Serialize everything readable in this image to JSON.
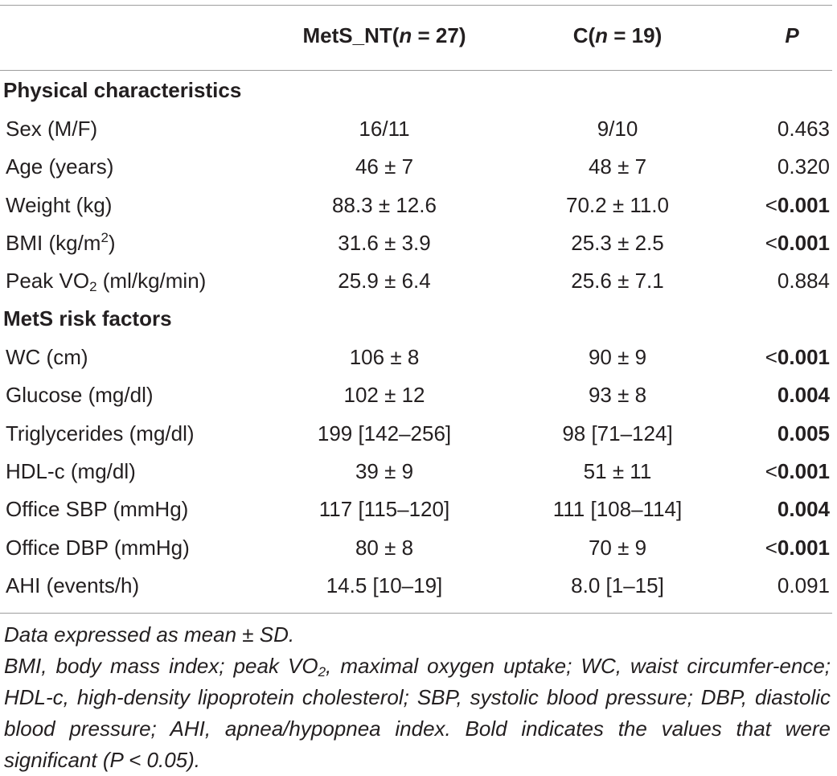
{
  "header": {
    "col1": "MetS_NT(",
    "col1_n": "n",
    "col1_tail": " = 27)",
    "col2": "C(",
    "col2_n": "n",
    "col2_tail": " = 19)",
    "col3": "P"
  },
  "sections": {
    "physical": "Physical characteristics",
    "risk": "MetS risk factors"
  },
  "rows": [
    {
      "label": "Sex (M/F)",
      "a": "16/11",
      "b": "9/10",
      "p": "0.463"
    },
    {
      "label": "Age (years)",
      "a": "46 ± 7",
      "b": "48 ± 7",
      "p": "0.320"
    },
    {
      "label": "Weight (kg)",
      "a": "88.3 ± 12.6",
      "b": "70.2 ± 11.0",
      "p_lt": "<",
      "p": "0.001"
    },
    {
      "label": "BMI (kg/m",
      "label_sup": "2",
      "label_tail": ")",
      "a": "31.6 ± 3.9",
      "b": "25.3 ± 2.5",
      "p_lt": "<",
      "p": "0.001"
    },
    {
      "label": "Peak VO",
      "label_sub": "2",
      "label_tail": " (ml/kg/min)",
      "a": "25.9 ± 6.4",
      "b": "25.6 ± 7.1",
      "p": "0.884"
    },
    {
      "label": "WC (cm)",
      "a": "106 ± 8",
      "b": "90 ± 9",
      "p_lt": "<",
      "p": "0.001"
    },
    {
      "label": "Glucose (mg/dl)",
      "a": "102 ± 12",
      "b": "93 ± 8",
      "p": "0.004"
    },
    {
      "label": "Triglycerides (mg/dl)",
      "a": "199 [142–256]",
      "b": "98 [71–124]",
      "p": "0.005"
    },
    {
      "label": "HDL-c (mg/dl)",
      "a": "39 ± 9",
      "b": "51 ± 11",
      "p_lt": "<",
      "p": "0.001"
    },
    {
      "label": "Office SBP (mmHg)",
      "a": "117 [115–120]",
      "b": "111 [108–114]",
      "p": "0.004"
    },
    {
      "label": "Office DBP (mmHg)",
      "a": "80 ± 8",
      "b": "70 ± 9",
      "p_lt": "<",
      "p": "0.001"
    },
    {
      "label": "AHI (events/h)",
      "a": "14.5 [10–19]",
      "b": "8.0 [1–15]",
      "p": "0.091"
    }
  ],
  "footnotes": {
    "line1": "Data expressed as mean ± SD.",
    "line2_a": "BMI, body mass index; peak VO",
    "line2_sub": "2",
    "line2_b": ", maximal oxygen uptake; WC, waist circumfer-ence; HDL-c, high-density lipoprotein cholesterol; SBP, systolic blood pressure; DBP, diastolic blood pressure; AHI, apnea/hypopnea index. Bold indicates the values that were significant (P < 0.05)."
  }
}
